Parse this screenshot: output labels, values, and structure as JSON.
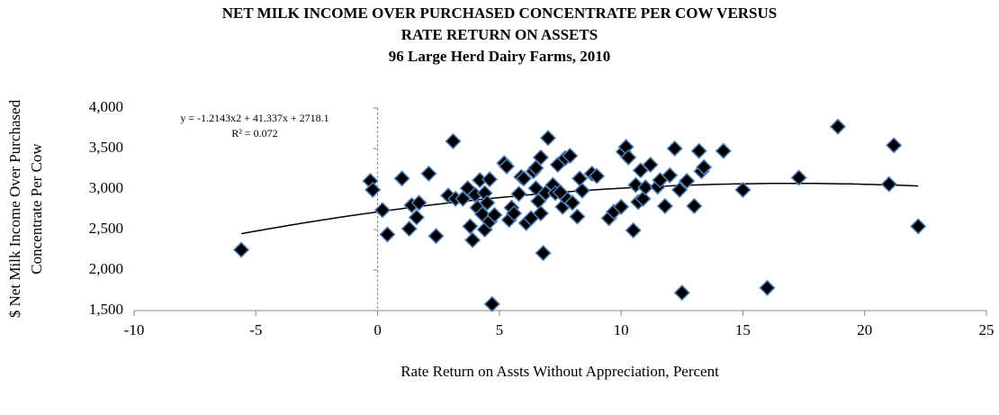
{
  "chart_data": {
    "type": "scatter",
    "title": [
      "NET MILK INCOME OVER PURCHASED CONCENTRATE PER COW VERSUS",
      "RATE RETURN ON ASSETS",
      "96 Large Herd Dairy Farms, 2010"
    ],
    "xlabel": "Rate Return on Assts Without Appreciation, Percent",
    "ylabel": [
      "$ Net Milk Income Over Purchased",
      "Concentrate Per Cow"
    ],
    "xlim": [
      -10,
      25
    ],
    "xticks": [
      -10,
      -5,
      0,
      5,
      10,
      15,
      20,
      25
    ],
    "ylim": [
      1500,
      4000
    ],
    "yticks": [
      {
        "value": 1500,
        "label": "1,500"
      },
      {
        "value": 2000,
        "label": "2,000"
      },
      {
        "value": 2500,
        "label": "2,500"
      },
      {
        "value": 3000,
        "label": "3,000"
      },
      {
        "value": 3500,
        "label": "3,500"
      },
      {
        "value": 4000,
        "label": "4,000"
      }
    ],
    "grid": false,
    "series": [
      {
        "color": "#000000",
        "x": [
          -5.6,
          -0.3,
          -0.2,
          0.2,
          0.4,
          1,
          1.3,
          1.4,
          1.6,
          1.7,
          2.1,
          2.4,
          2.9,
          3.1,
          3.2,
          3.5,
          3.7,
          3.8,
          3.9,
          4,
          4.1,
          4.2,
          4.3,
          4.4,
          4.4,
          4.5,
          4.6,
          4.6,
          4.7,
          4.8,
          5.2,
          5.3,
          5.4,
          5.5,
          5.6,
          5.8,
          5.9,
          6,
          6.1,
          6.3,
          6.4,
          6.5,
          6.5,
          6.6,
          6.7,
          6.7,
          6.8,
          6.9,
          7,
          7.2,
          7.3,
          7.4,
          7.5,
          7.6,
          7.7,
          7.8,
          7.9,
          8,
          8.2,
          8.3,
          8.4,
          8.8,
          9,
          9.5,
          9.7,
          10,
          10.1,
          10.2,
          10.3,
          10.5,
          10.6,
          10.7,
          10.8,
          10.9,
          11,
          11.2,
          11.5,
          11.6,
          11.8,
          12,
          12.2,
          12.4,
          12.5,
          12.7,
          13,
          13.2,
          13.3,
          13.4,
          14.2,
          15,
          16,
          17.3,
          18.9,
          21,
          21.2,
          22.2
        ],
        "values": [
          2250,
          3100,
          2990,
          2740,
          2440,
          3130,
          2510,
          2800,
          2650,
          2830,
          3190,
          2420,
          2920,
          3590,
          2880,
          2880,
          3010,
          2540,
          2370,
          2930,
          2770,
          3110,
          2690,
          2500,
          2950,
          2830,
          3120,
          2600,
          1580,
          2680,
          3320,
          3280,
          2620,
          2770,
          2700,
          2940,
          3150,
          3130,
          2580,
          2640,
          3220,
          3260,
          3010,
          2850,
          3390,
          2700,
          2210,
          2950,
          3630,
          3050,
          2950,
          3300,
          2960,
          2780,
          3380,
          2870,
          3410,
          2830,
          2660,
          3130,
          2980,
          3190,
          3160,
          2640,
          2720,
          2780,
          3460,
          3520,
          3390,
          2490,
          3050,
          2840,
          3230,
          2880,
          3020,
          3300,
          3030,
          3110,
          2790,
          3170,
          3500,
          2990,
          1720,
          3100,
          2790,
          3470,
          3220,
          3270,
          3470,
          2990,
          1780,
          3140,
          3770,
          3060,
          3540,
          2540
        ]
      }
    ],
    "trendline": {
      "equation": "y = -1.2143x2 + 41.337x + 2718.1",
      "r2": "R² = 0.072",
      "coefficients": [
        -1.2143,
        41.337,
        2718.1
      ],
      "color": "#000000"
    }
  }
}
